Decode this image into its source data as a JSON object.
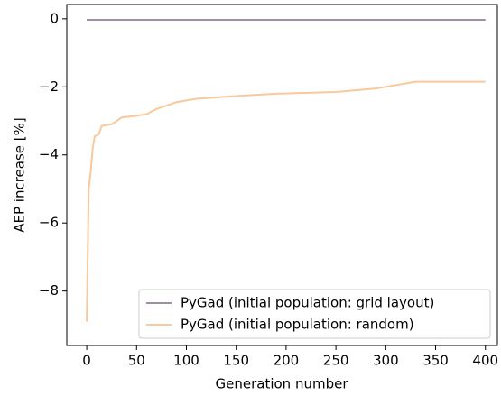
{
  "chart_data": {
    "type": "line",
    "x_label": "Generation number",
    "y_label": "AEP increase [%]",
    "xlim": [
      -20,
      412
    ],
    "ylim": [
      -9.6,
      0.42
    ],
    "xticks": [
      0,
      50,
      100,
      150,
      200,
      250,
      300,
      350,
      400
    ],
    "yticks": [
      {
        "value": -8,
        "label": "−8"
      },
      {
        "value": -6,
        "label": "−6"
      },
      {
        "value": -4,
        "label": "−4"
      },
      {
        "value": -2,
        "label": "−2"
      },
      0
    ],
    "legend": "lower right",
    "series": [
      {
        "name": "PyGad (initial population: grid layout)",
        "color": "#9e8fa3",
        "x": [
          0,
          400
        ],
        "values": [
          -0.03,
          -0.03
        ]
      },
      {
        "name": "PyGad (initial population: random)",
        "color": "#f8c99d",
        "x": [
          0,
          2,
          4,
          6,
          8,
          12,
          15,
          25,
          30,
          35,
          50,
          60,
          70,
          80,
          90,
          110,
          135,
          160,
          190,
          250,
          290,
          320,
          330,
          400
        ],
        "values": [
          -8.9,
          -5.0,
          -4.5,
          -3.8,
          -3.45,
          -3.4,
          -3.15,
          -3.1,
          -3.0,
          -2.9,
          -2.85,
          -2.8,
          -2.65,
          -2.55,
          -2.45,
          -2.35,
          -2.3,
          -2.25,
          -2.2,
          -2.15,
          -2.05,
          -1.9,
          -1.85,
          -1.85
        ]
      }
    ]
  }
}
